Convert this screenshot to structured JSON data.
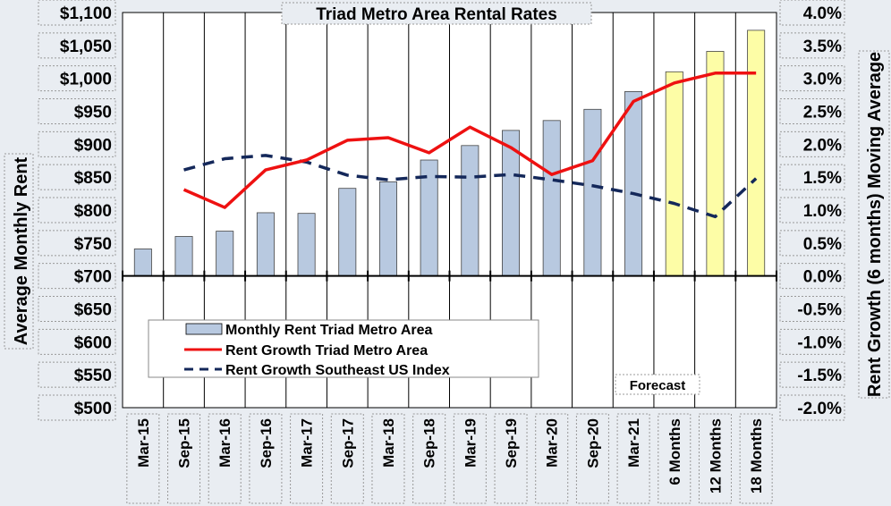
{
  "chart_data": {
    "type": "bar",
    "title": "Triad Metro Area Rental Rates",
    "ylabel": "Average Monthly Rent",
    "y2label": "Rent Growth (6 months) Moving Average",
    "categories": [
      "Mar-15",
      "Sep-15",
      "Mar-16",
      "Sep-16",
      "Mar-17",
      "Sep-17",
      "Mar-18",
      "Sep-18",
      "Mar-19",
      "Sep-19",
      "Mar-20",
      "Sep-20",
      "Mar-21",
      "6 Months",
      "12 Months",
      "18 Months"
    ],
    "ylim": [
      500,
      1100
    ],
    "y2lim": [
      -0.02,
      0.04
    ],
    "yticks": [
      "$500",
      "$550",
      "$600",
      "$650",
      "$700",
      "$750",
      "$800",
      "$850",
      "$900",
      "$950",
      "$1,000",
      "$1,050",
      "$1,100"
    ],
    "y2ticks": [
      "-2.0%",
      "-1.5%",
      "-1.0%",
      "-0.5%",
      "0.0%",
      "0.5%",
      "1.0%",
      "1.5%",
      "2.0%",
      "2.5%",
      "3.0%",
      "3.5%",
      "4.0%"
    ],
    "bar_baseline": 700,
    "series": [
      {
        "name": "Monthly Rent Triad Metro Area",
        "type": "bar",
        "axis": "left",
        "values": [
          741,
          760,
          768,
          796,
          795,
          833,
          843,
          876,
          898,
          921,
          936,
          953,
          980,
          1010,
          1041,
          1073
        ],
        "forecast_from_index": 13
      },
      {
        "name": "Rent Growth Triad Metro Area",
        "type": "line",
        "axis": "right",
        "values": [
          null,
          0.0131,
          0.0104,
          0.0161,
          0.0176,
          0.0206,
          0.021,
          0.0187,
          0.0226,
          0.0195,
          0.0154,
          0.0175,
          0.0265,
          0.0293,
          0.0308,
          0.0308
        ]
      },
      {
        "name": "Rent Growth Southeast US Index",
        "type": "dashed-line",
        "axis": "right",
        "values": [
          null,
          0.0161,
          0.0178,
          0.0183,
          0.0173,
          0.0153,
          0.0146,
          0.0151,
          0.015,
          0.0154,
          0.0146,
          0.0137,
          0.0125,
          0.011,
          0.009,
          0.0148
        ]
      }
    ],
    "annotations": [
      "Forecast"
    ],
    "colors": {
      "bar": "#b8c9e0",
      "bar_forecast": "#fdfda6",
      "growth_line": "#ee1111",
      "southeast_line": "#14285a",
      "plot_bg": "#ffffff"
    },
    "legend": "lower-left inside plot",
    "grid": "vertical lines only"
  }
}
